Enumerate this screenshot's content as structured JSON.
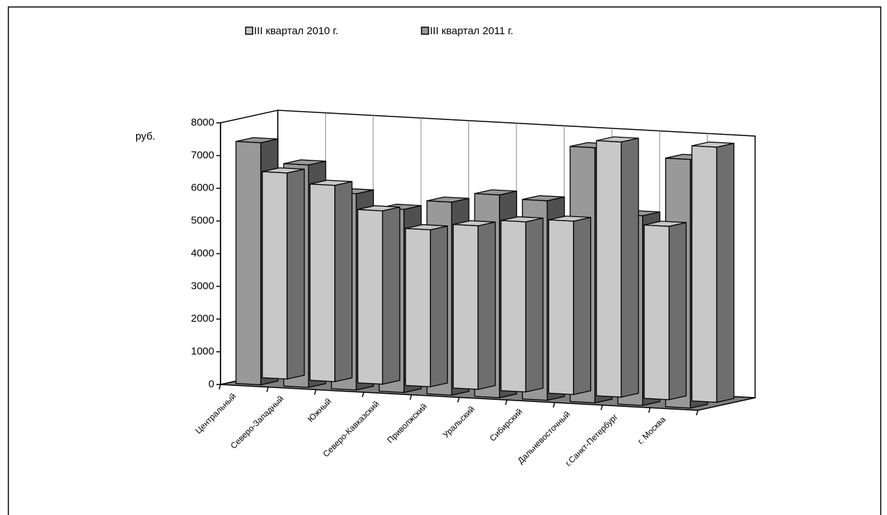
{
  "chart_data": {
    "type": "bar3d",
    "y_label": "руб.",
    "categories": [
      "Центральный",
      "Северо-Западный",
      "Южный",
      "Северо-Кавказский",
      "Приволжский",
      "Уральский",
      "Сибирский",
      "Дальневосточный",
      "г.Санкт-Петербург",
      "г. Москва"
    ],
    "series": [
      {
        "name": "III квартал 2010 г.",
        "color": "#c8c8c8",
        "side_color": "#6e6e6e",
        "values": [
          6300,
          6000,
          5300,
          4800,
          5000,
          5200,
          5300,
          7800,
          5300,
          7800
        ]
      },
      {
        "name": "III квартал 2011 г.",
        "color": "#999999",
        "side_color": "#505050",
        "values": [
          7400,
          6800,
          6000,
          5600,
          5900,
          6200,
          6100,
          7800,
          5800,
          7600
        ]
      }
    ],
    "ylim": [
      0,
      8000
    ],
    "yticks": [
      0,
      1000,
      2000,
      3000,
      4000,
      5000,
      6000,
      7000,
      8000
    ],
    "grid": true
  }
}
